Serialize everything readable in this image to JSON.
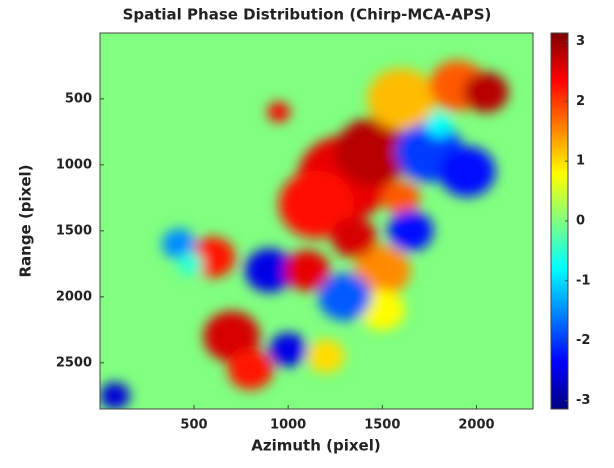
{
  "chart_data": {
    "type": "heatmap",
    "title": "Spatial Phase Distribution (Chirp-MCA-APS)",
    "xlabel": "Azimuth (pixel)",
    "ylabel": "Range (pixel)",
    "xlim": [
      1,
      2300
    ],
    "xticks": [
      500,
      1000,
      1500,
      2000
    ],
    "ylim": [
      1,
      2850
    ],
    "yticks": [
      500,
      1000,
      1500,
      2000,
      2500
    ],
    "y_reversed": true,
    "colormap": "jet",
    "clim": [
      -3.14,
      3.14
    ],
    "cticks": [
      -3,
      -2,
      -1,
      0,
      1,
      2,
      3
    ],
    "background_value": 0,
    "regions": [
      {
        "x": 1300,
        "y": 1100,
        "r": 250,
        "value": 2.5
      },
      {
        "x": 1150,
        "y": 1300,
        "r": 200,
        "value": 2.3
      },
      {
        "x": 1450,
        "y": 900,
        "r": 200,
        "value": 2.8
      },
      {
        "x": 1600,
        "y": 1250,
        "r": 100,
        "value": 1.8
      },
      {
        "x": 1750,
        "y": 900,
        "r": 180,
        "value": -2
      },
      {
        "x": 1950,
        "y": 1050,
        "r": 150,
        "value": -2.3
      },
      {
        "x": 1600,
        "y": 500,
        "r": 180,
        "value": 1.2
      },
      {
        "x": 1900,
        "y": 400,
        "r": 150,
        "value": 1.8
      },
      {
        "x": 2050,
        "y": 450,
        "r": 120,
        "value": 2.8
      },
      {
        "x": 1800,
        "y": 700,
        "r": 70,
        "value": -0.8
      },
      {
        "x": 600,
        "y": 1700,
        "r": 120,
        "value": 2.2
      },
      {
        "x": 420,
        "y": 1600,
        "r": 90,
        "value": -1.5
      },
      {
        "x": 480,
        "y": 1750,
        "r": 70,
        "value": -0.5
      },
      {
        "x": 900,
        "y": 1800,
        "r": 130,
        "value": -2.5
      },
      {
        "x": 1100,
        "y": 1800,
        "r": 120,
        "value": 2.5
      },
      {
        "x": 1500,
        "y": 1800,
        "r": 150,
        "value": 1.5
      },
      {
        "x": 1500,
        "y": 2100,
        "r": 120,
        "value": 0.8
      },
      {
        "x": 1300,
        "y": 2000,
        "r": 140,
        "value": -1.8
      },
      {
        "x": 1650,
        "y": 1500,
        "r": 120,
        "value": -2.3
      },
      {
        "x": 1350,
        "y": 1550,
        "r": 120,
        "value": 2.6
      },
      {
        "x": 700,
        "y": 2300,
        "r": 150,
        "value": 2.6
      },
      {
        "x": 800,
        "y": 2550,
        "r": 120,
        "value": 2.2
      },
      {
        "x": 1000,
        "y": 2400,
        "r": 100,
        "value": -2.5
      },
      {
        "x": 1200,
        "y": 2450,
        "r": 100,
        "value": 1
      },
      {
        "x": 80,
        "y": 2750,
        "r": 80,
        "value": -2.6
      },
      {
        "x": 950,
        "y": 600,
        "r": 60,
        "value": 2.4
      }
    ]
  }
}
